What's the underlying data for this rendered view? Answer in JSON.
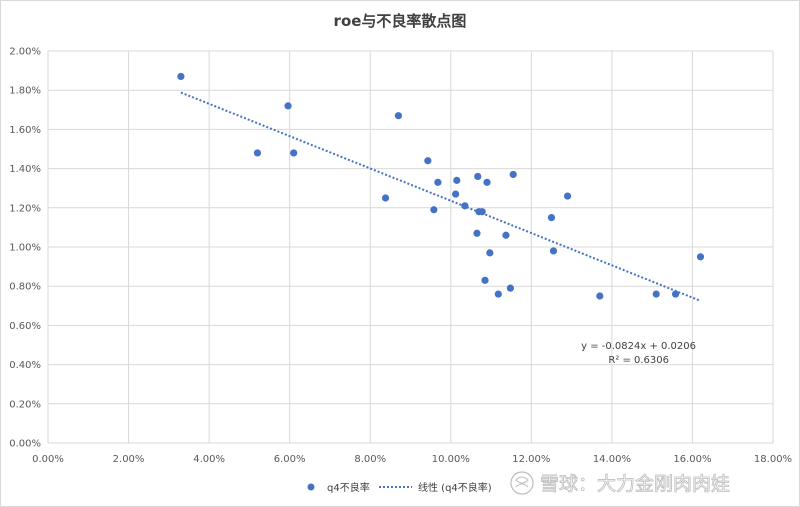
{
  "chart_data": {
    "type": "scatter",
    "title": "roe与不良率散点图",
    "xlabel": "",
    "ylabel": "",
    "xlim": [
      0.0,
      0.18
    ],
    "ylim": [
      0.0,
      0.02
    ],
    "x_ticks": [
      "0.00%",
      "2.00%",
      "4.00%",
      "6.00%",
      "8.00%",
      "10.00%",
      "12.00%",
      "14.00%",
      "16.00%",
      "18.00%"
    ],
    "y_ticks": [
      "0.00%",
      "0.20%",
      "0.40%",
      "0.60%",
      "0.80%",
      "1.00%",
      "1.20%",
      "1.40%",
      "1.60%",
      "1.80%",
      "2.00%"
    ],
    "grid": "vertical-and-horizontal",
    "series": [
      {
        "name": "q4不良率",
        "color": "#4472C4",
        "points": [
          {
            "x": 0.033,
            "y": 0.0187
          },
          {
            "x": 0.052,
            "y": 0.0148
          },
          {
            "x": 0.0596,
            "y": 0.0172
          },
          {
            "x": 0.061,
            "y": 0.0148
          },
          {
            "x": 0.0838,
            "y": 0.0125
          },
          {
            "x": 0.087,
            "y": 0.0167
          },
          {
            "x": 0.0943,
            "y": 0.0144
          },
          {
            "x": 0.0958,
            "y": 0.0119
          },
          {
            "x": 0.0968,
            "y": 0.0133
          },
          {
            "x": 0.1012,
            "y": 0.0127
          },
          {
            "x": 0.1015,
            "y": 0.0134
          },
          {
            "x": 0.1035,
            "y": 0.0121
          },
          {
            "x": 0.1065,
            "y": 0.0107
          },
          {
            "x": 0.1067,
            "y": 0.0136
          },
          {
            "x": 0.107,
            "y": 0.0118
          },
          {
            "x": 0.1078,
            "y": 0.0118
          },
          {
            "x": 0.1085,
            "y": 0.0083
          },
          {
            "x": 0.109,
            "y": 0.0133
          },
          {
            "x": 0.1097,
            "y": 0.0097
          },
          {
            "x": 0.1118,
            "y": 0.0076
          },
          {
            "x": 0.1137,
            "y": 0.0106
          },
          {
            "x": 0.1148,
            "y": 0.0079
          },
          {
            "x": 0.1155,
            "y": 0.0137
          },
          {
            "x": 0.125,
            "y": 0.0115
          },
          {
            "x": 0.1255,
            "y": 0.0098
          },
          {
            "x": 0.129,
            "y": 0.0126
          },
          {
            "x": 0.137,
            "y": 0.0075
          },
          {
            "x": 0.151,
            "y": 0.0076
          },
          {
            "x": 0.1558,
            "y": 0.0076
          },
          {
            "x": 0.162,
            "y": 0.0095
          }
        ]
      }
    ],
    "trendline": {
      "name": "线性 (q4不良率)",
      "slope": -0.0824,
      "intercept": 0.0206,
      "x_range": [
        0.033,
        0.162
      ],
      "equation": "y = -0.0824x + 0.0206",
      "r2": "R² = 0.6306",
      "color": "#4472C4"
    },
    "legend": {
      "position": "bottom",
      "items": [
        "q4不良率",
        "线性 (q4不良率)"
      ]
    }
  },
  "watermark": "雪球：大力金刚肉肉娃"
}
